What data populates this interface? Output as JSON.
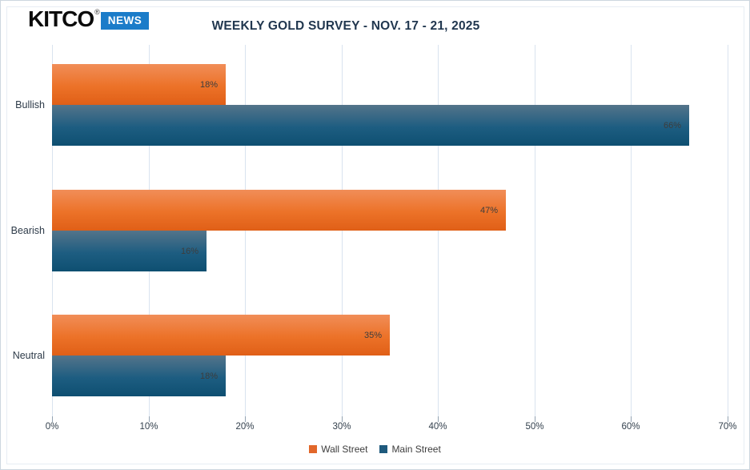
{
  "brand": {
    "name": "KITCO",
    "registered_mark": "®",
    "news_badge": "NEWS",
    "news_badge_bg": "#1b7cc9"
  },
  "chart_data": {
    "type": "bar",
    "orientation": "horizontal",
    "title": "WEEKLY GOLD SURVEY - NOV. 17 - 21, 2025",
    "categories": [
      "Bullish",
      "Bearish",
      "Neutral"
    ],
    "series": [
      {
        "name": "Wall Street",
        "values": [
          18,
          47,
          35
        ],
        "legend_color": "#e2672a",
        "gradient": [
          "#f18e58",
          "#ec7228",
          "#e05f17"
        ]
      },
      {
        "name": "Main Street",
        "values": [
          66,
          16,
          18
        ],
        "legend_color": "#1e5a7d",
        "gradient": [
          "#54748a",
          "#1d5d81",
          "#0e4f71"
        ]
      }
    ],
    "value_suffix": "%",
    "data_labels": "inside-end",
    "x_ticks": [
      "0%",
      "10%",
      "20%",
      "30%",
      "40%",
      "50%",
      "60%",
      "70%"
    ],
    "xlim": [
      0,
      70
    ],
    "grid": true,
    "gridline_color": "#d9e3ef",
    "legend_position": "bottom"
  }
}
